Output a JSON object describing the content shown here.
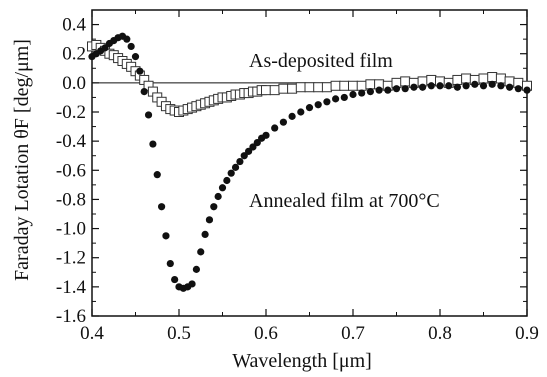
{
  "chart_data": {
    "type": "scatter",
    "xlabel": "Wavelength [μm]",
    "ylabel": "Faraday Lotation θF [deg/μm]",
    "xlim": [
      0.4,
      0.9
    ],
    "ylim": [
      -1.6,
      0.5
    ],
    "x_ticks": [
      "0.4",
      "0.5",
      "0.6",
      "0.7",
      "0.8",
      "0.9"
    ],
    "y_ticks": [
      "0.4",
      "0.2",
      "0.0",
      "-0.2",
      "-0.4",
      "-0.6",
      "-0.8",
      "-1.0",
      "-1.2",
      "-1.4",
      "-1.6"
    ],
    "reference_line_y": 0.0,
    "grid": false,
    "annotations": [
      "As-deposited film",
      "Annealed film at 700°C"
    ],
    "series": [
      {
        "name": "As-deposited film",
        "marker": "open-square",
        "x": [
          0.4,
          0.405,
          0.41,
          0.415,
          0.42,
          0.425,
          0.43,
          0.435,
          0.44,
          0.445,
          0.45,
          0.455,
          0.46,
          0.465,
          0.47,
          0.475,
          0.48,
          0.485,
          0.49,
          0.495,
          0.5,
          0.505,
          0.51,
          0.515,
          0.52,
          0.525,
          0.53,
          0.535,
          0.54,
          0.545,
          0.55,
          0.555,
          0.56,
          0.565,
          0.57,
          0.575,
          0.58,
          0.585,
          0.59,
          0.595,
          0.6,
          0.61,
          0.62,
          0.63,
          0.64,
          0.65,
          0.66,
          0.67,
          0.68,
          0.69,
          0.7,
          0.71,
          0.72,
          0.73,
          0.74,
          0.75,
          0.76,
          0.77,
          0.78,
          0.79,
          0.8,
          0.81,
          0.82,
          0.83,
          0.84,
          0.85,
          0.86,
          0.87,
          0.88,
          0.89,
          0.9
        ],
        "y": [
          0.25,
          0.26,
          0.24,
          0.22,
          0.2,
          0.19,
          0.17,
          0.15,
          0.13,
          0.11,
          0.08,
          0.05,
          0.02,
          -0.02,
          -0.06,
          -0.1,
          -0.13,
          -0.16,
          -0.18,
          -0.19,
          -0.2,
          -0.19,
          -0.18,
          -0.17,
          -0.16,
          -0.15,
          -0.14,
          -0.13,
          -0.12,
          -0.11,
          -0.1,
          -0.1,
          -0.09,
          -0.08,
          -0.08,
          -0.07,
          -0.07,
          -0.06,
          -0.06,
          -0.05,
          -0.05,
          -0.05,
          -0.04,
          -0.04,
          -0.03,
          -0.03,
          -0.03,
          -0.03,
          -0.02,
          -0.02,
          -0.02,
          -0.02,
          -0.01,
          -0.01,
          -0.02,
          0.0,
          0.01,
          0.0,
          0.01,
          0.02,
          0.01,
          0.0,
          0.02,
          0.03,
          0.02,
          0.03,
          0.04,
          0.03,
          0.01,
          0.0,
          -0.02
        ]
      },
      {
        "name": "Annealed film at 700°C",
        "marker": "filled-circle",
        "x": [
          0.4,
          0.405,
          0.41,
          0.415,
          0.42,
          0.425,
          0.43,
          0.435,
          0.44,
          0.445,
          0.45,
          0.455,
          0.46,
          0.465,
          0.47,
          0.475,
          0.48,
          0.485,
          0.49,
          0.495,
          0.5,
          0.505,
          0.51,
          0.515,
          0.52,
          0.525,
          0.53,
          0.535,
          0.54,
          0.545,
          0.55,
          0.555,
          0.56,
          0.565,
          0.57,
          0.575,
          0.58,
          0.585,
          0.59,
          0.595,
          0.6,
          0.61,
          0.62,
          0.63,
          0.64,
          0.65,
          0.66,
          0.67,
          0.68,
          0.69,
          0.7,
          0.71,
          0.72,
          0.73,
          0.74,
          0.75,
          0.76,
          0.77,
          0.78,
          0.79,
          0.8,
          0.81,
          0.82,
          0.83,
          0.84,
          0.85,
          0.86,
          0.87,
          0.88,
          0.89,
          0.9
        ],
        "y": [
          0.18,
          0.2,
          0.22,
          0.24,
          0.27,
          0.29,
          0.31,
          0.32,
          0.3,
          0.25,
          0.18,
          0.08,
          -0.06,
          -0.22,
          -0.42,
          -0.63,
          -0.85,
          -1.05,
          -1.24,
          -1.35,
          -1.4,
          -1.41,
          -1.4,
          -1.38,
          -1.28,
          -1.16,
          -1.04,
          -0.94,
          -0.85,
          -0.78,
          -0.72,
          -0.67,
          -0.62,
          -0.58,
          -0.54,
          -0.5,
          -0.47,
          -0.44,
          -0.41,
          -0.38,
          -0.36,
          -0.31,
          -0.27,
          -0.23,
          -0.2,
          -0.17,
          -0.15,
          -0.13,
          -0.11,
          -0.1,
          -0.08,
          -0.07,
          -0.06,
          -0.05,
          -0.05,
          -0.04,
          -0.04,
          -0.03,
          -0.03,
          -0.02,
          -0.02,
          -0.02,
          -0.03,
          -0.02,
          -0.01,
          -0.02,
          -0.01,
          -0.02,
          -0.03,
          -0.04,
          -0.05
        ]
      }
    ]
  }
}
